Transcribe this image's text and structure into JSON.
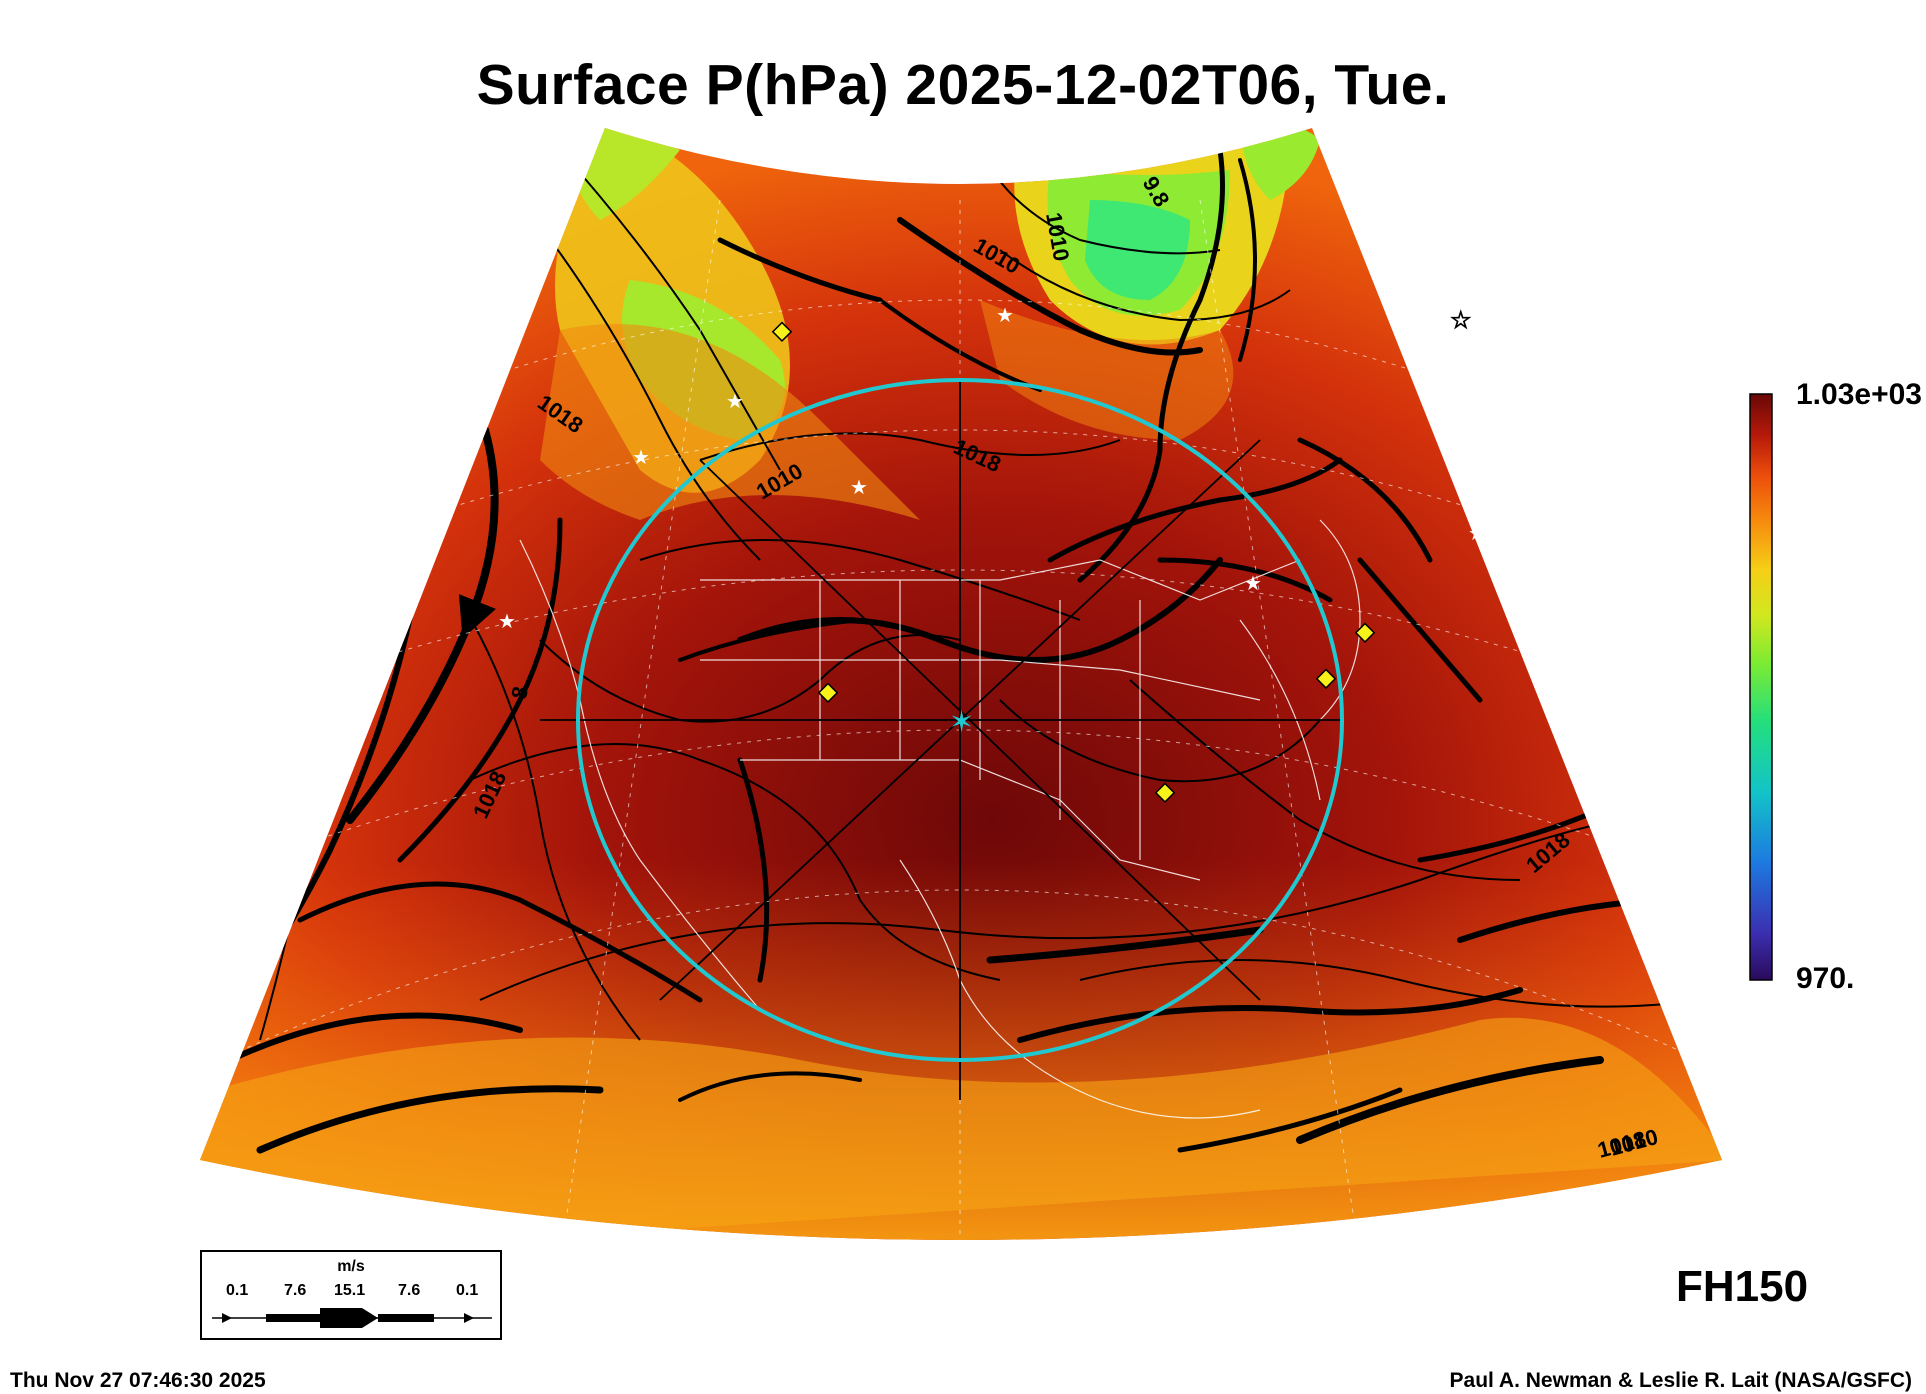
{
  "title": "Surface P(hPa) 2025-12-02T06, Tue.",
  "colorbar": {
    "max_label": "1.03e+03",
    "min_label": "970.",
    "colors": [
      "#3a0a7a",
      "#3b3fc9",
      "#1f8ee0",
      "#14c8c0",
      "#27e07a",
      "#66f03c",
      "#b5ee2a",
      "#f2e21c",
      "#f9a70f",
      "#f46a0a",
      "#d8300a",
      "#a5150a",
      "#7a0c0a"
    ]
  },
  "isobar_labels": [
    "1018",
    "1010",
    "1018",
    "1010",
    "1018",
    "1018",
    "1018",
    "1010",
    "9.8",
    "1010",
    "8"
  ],
  "wind_legend": {
    "unit": "m/s",
    "ticks": [
      "0.1",
      "7.6",
      "15.1",
      "7.6",
      "0.1"
    ]
  },
  "forecast_hour": "FH150",
  "footer": {
    "timestamp": "Thu Nov 27 07:46:30 2025",
    "credit": "Paul A. Newman & Leslie R. Lait (NASA/GSFC)"
  },
  "colors": {
    "high_pressure": "#8a0c0a",
    "mid_pressure": "#e84b0c",
    "low_pressure": "#7bea2a",
    "range_ring": "#22c8d0",
    "station_marker": "#f7f21a"
  }
}
